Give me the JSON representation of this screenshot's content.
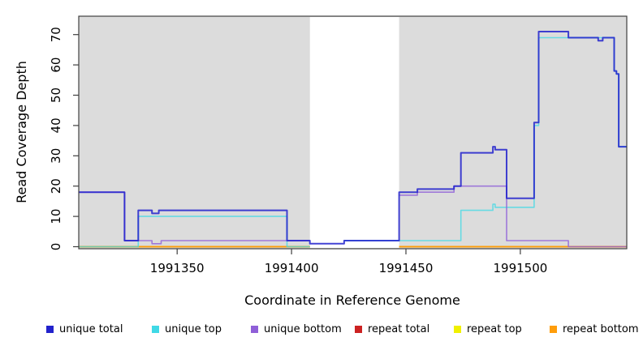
{
  "chart_data": {
    "type": "line",
    "subtype": "step",
    "title": "",
    "xlabel": "Coordinate in Reference Genome",
    "ylabel": "Read Coverage Depth",
    "xlim": [
      1991307,
      1991546.5
    ],
    "ylim": [
      0,
      76
    ],
    "xticks": [
      1991350,
      1991400,
      1991450,
      1991500
    ],
    "yticks": [
      0,
      10,
      20,
      30,
      40,
      50,
      60,
      70
    ],
    "grid": false,
    "plot_background": "#DCDCDC",
    "mask_region": {
      "x_from": 1991408,
      "x_to": 1991447,
      "color": "#FFFFFF"
    },
    "series": [
      {
        "name": "repeat total",
        "color": "#CC2222",
        "opacity": 1,
        "width": 1.5,
        "points": [
          [
            1991307,
            0
          ],
          [
            1991408,
            null
          ],
          [
            1991447,
            0
          ],
          [
            1991547,
            0
          ]
        ]
      },
      {
        "name": "repeat top",
        "color": "#F0F000",
        "opacity": 1,
        "width": 1.5,
        "points": [
          [
            1991307,
            0
          ],
          [
            1991408,
            null
          ],
          [
            1991447,
            0
          ],
          [
            1991547,
            0
          ]
        ]
      },
      {
        "name": "repeat bottom",
        "color": "#FF9D0A",
        "opacity": 1,
        "width": 1.8,
        "points": [
          [
            1991307,
            0
          ],
          [
            1991408,
            null
          ],
          [
            1991447,
            0
          ],
          [
            1991547,
            0
          ]
        ]
      },
      {
        "name": "unique top",
        "color": "#40D9E6",
        "opacity": 0.75,
        "width": 1.6,
        "points": [
          [
            1991307,
            0
          ],
          [
            1991333,
            10
          ],
          [
            1991398,
            0
          ],
          [
            1991408,
            null
          ],
          [
            1991423,
            2
          ],
          [
            1991474,
            12
          ],
          [
            1991488,
            14
          ],
          [
            1991489,
            13
          ],
          [
            1991506,
            40
          ],
          [
            1991508,
            69
          ],
          [
            1991541,
            58
          ],
          [
            1991542,
            57
          ],
          [
            1991543,
            33
          ],
          [
            1991547,
            33
          ]
        ]
      },
      {
        "name": "unique bottom",
        "color": "#8F5FD8",
        "opacity": 0.8,
        "width": 1.6,
        "points": [
          [
            1991307,
            18
          ],
          [
            1991327,
            2
          ],
          [
            1991339,
            1
          ],
          [
            1991343,
            2
          ],
          [
            1991408,
            null
          ],
          [
            1991447,
            17
          ],
          [
            1991455,
            18
          ],
          [
            1991471,
            20
          ],
          [
            1991494,
            2
          ],
          [
            1991521,
            0
          ],
          [
            1991547,
            0
          ]
        ]
      },
      {
        "name": "unique total",
        "color": "#2222CC",
        "opacity": 0.85,
        "width": 2,
        "points": [
          [
            1991307,
            18
          ],
          [
            1991327,
            2
          ],
          [
            1991333,
            12
          ],
          [
            1991339,
            11
          ],
          [
            1991342,
            12
          ],
          [
            1991398,
            2
          ],
          [
            1991408,
            1
          ],
          [
            1991423,
            2
          ],
          [
            1991447,
            18
          ],
          [
            1991455,
            19
          ],
          [
            1991471,
            20
          ],
          [
            1991474,
            31
          ],
          [
            1991488,
            33
          ],
          [
            1991489,
            32
          ],
          [
            1991494,
            16
          ],
          [
            1991506,
            41
          ],
          [
            1991508,
            71
          ],
          [
            1991521,
            69
          ],
          [
            1991534,
            68
          ],
          [
            1991536,
            69
          ],
          [
            1991541,
            58
          ],
          [
            1991542,
            57
          ],
          [
            1991543,
            33
          ],
          [
            1991547,
            33
          ]
        ]
      }
    ]
  },
  "legend": {
    "items": [
      {
        "label": "unique total",
        "color": "#2222CC"
      },
      {
        "label": "unique top",
        "color": "#40D9E6"
      },
      {
        "label": "unique bottom",
        "color": "#8F5FD8"
      },
      {
        "label": "repeat total",
        "color": "#CC2222"
      },
      {
        "label": "repeat top",
        "color": "#F0F000"
      },
      {
        "label": "repeat bottom",
        "color": "#FF9D0A"
      }
    ]
  }
}
